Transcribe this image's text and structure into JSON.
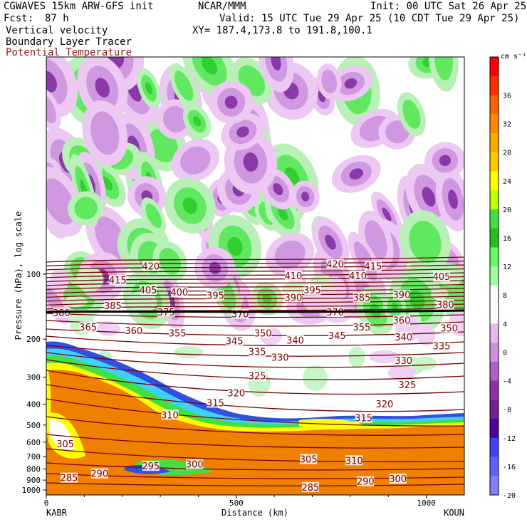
{
  "header": {
    "model": "CGWAVES 15km ARW-GFS init",
    "org": "NCAR/MMM",
    "init": "Init: 00 UTC Sat 26 Apr 25",
    "fcst_label": "Fcst:",
    "fcst_value": "87 h",
    "valid": "Valid: 15 UTC Tue 29 Apr 25 (10 CDT Tue 29 Apr 25)",
    "field1": "Vertical velocity",
    "field2": "Boundary Layer Tracer",
    "field3": "Potential Temperature",
    "xy": "XY= 187.4,173.8 to 191.8,100.1"
  },
  "colors": {
    "theta": "#7a0000",
    "tracer": "#f08000",
    "upward": "#20c020",
    "downward": "#a020a0"
  },
  "chart_data": {
    "type": "heatmap",
    "title": "Vertical velocity / Boundary Layer Tracer / Potential Temperature",
    "xlabel": "Distance (km)",
    "ylabel": "Pressure (hPa), log scale",
    "x_ticks": [
      0,
      500,
      1000
    ],
    "x_range": [
      0,
      1100
    ],
    "x_endpoints": {
      "left": "KABR",
      "right": "KOUN"
    },
    "y_scale": "log",
    "y_ticks": [
      100,
      200,
      300,
      400,
      500,
      600,
      700,
      800,
      900,
      1000
    ],
    "colorbar": {
      "units": "cm s⁻¹",
      "ticks": [
        36,
        32,
        28,
        24,
        20,
        16,
        12,
        8,
        4,
        0,
        -4,
        -8,
        -12,
        -16,
        -20
      ],
      "colors": [
        "#ff0000",
        "#ff3000",
        "#ff6000",
        "#ff8800",
        "#ffa800",
        "#ffc800",
        "#ffff00",
        "#c0ff00",
        "#40e040",
        "#20c020",
        "#60ff60",
        "#a0ffa0",
        "#ffffff",
        "#ffffff",
        "#e8b8f0",
        "#d090e0",
        "#b060c8",
        "#9030b0",
        "#702090",
        "#5000a0",
        "#4040ff",
        "#6060ff",
        "#8080ff"
      ]
    },
    "theta_labels": [
      {
        "v": "420",
        "x": 275,
        "p": 93
      },
      {
        "v": "420",
        "x": 760,
        "p": 91
      },
      {
        "v": "415",
        "x": 188,
        "p": 108
      },
      {
        "v": "415",
        "x": 860,
        "p": 93
      },
      {
        "v": "410",
        "x": 650,
        "p": 103
      },
      {
        "v": "410",
        "x": 820,
        "p": 103
      },
      {
        "v": "405",
        "x": 268,
        "p": 120
      },
      {
        "v": "405",
        "x": 1040,
        "p": 104
      },
      {
        "v": "400",
        "x": 350,
        "p": 123
      },
      {
        "v": "395",
        "x": 445,
        "p": 127
      },
      {
        "v": "395",
        "x": 700,
        "p": 120
      },
      {
        "v": "390",
        "x": 650,
        "p": 130
      },
      {
        "v": "390",
        "x": 935,
        "p": 126
      },
      {
        "v": "385",
        "x": 175,
        "p": 142
      },
      {
        "v": "385",
        "x": 830,
        "p": 130
      },
      {
        "v": "380",
        "x": 40,
        "p": 153
      },
      {
        "v": "380",
        "x": 1050,
        "p": 140
      },
      {
        "v": "375",
        "x": 315,
        "p": 152
      },
      {
        "v": "370",
        "x": 510,
        "p": 155
      },
      {
        "v": "370",
        "x": 760,
        "p": 152
      },
      {
        "v": "365",
        "x": 110,
        "p": 178
      },
      {
        "v": "360",
        "x": 230,
        "p": 185
      },
      {
        "v": "360",
        "x": 935,
        "p": 166
      },
      {
        "v": "355",
        "x": 345,
        "p": 190
      },
      {
        "v": "355",
        "x": 830,
        "p": 178
      },
      {
        "v": "350",
        "x": 570,
        "p": 190
      },
      {
        "v": "350",
        "x": 1060,
        "p": 180
      },
      {
        "v": "345",
        "x": 495,
        "p": 207
      },
      {
        "v": "345",
        "x": 765,
        "p": 195
      },
      {
        "v": "340",
        "x": 655,
        "p": 205
      },
      {
        "v": "340",
        "x": 940,
        "p": 198
      },
      {
        "v": "335",
        "x": 555,
        "p": 232
      },
      {
        "v": "335",
        "x": 1040,
        "p": 218
      },
      {
        "v": "330",
        "x": 615,
        "p": 246
      },
      {
        "v": "330",
        "x": 940,
        "p": 255
      },
      {
        "v": "325",
        "x": 555,
        "p": 300
      },
      {
        "v": "325",
        "x": 950,
        "p": 330
      },
      {
        "v": "320",
        "x": 500,
        "p": 360
      },
      {
        "v": "320",
        "x": 890,
        "p": 405
      },
      {
        "v": "315",
        "x": 445,
        "p": 400
      },
      {
        "v": "315",
        "x": 835,
        "p": 470
      },
      {
        "v": "310",
        "x": 325,
        "p": 455
      },
      {
        "v": "310",
        "x": 810,
        "p": 740
      },
      {
        "v": "305",
        "x": 50,
        "p": 620
      },
      {
        "v": "305",
        "x": 690,
        "p": 730
      },
      {
        "v": "300",
        "x": 390,
        "p": 770
      },
      {
        "v": "300",
        "x": 925,
        "p": 900
      },
      {
        "v": "295",
        "x": 275,
        "p": 785
      },
      {
        "v": "290",
        "x": 140,
        "p": 850
      },
      {
        "v": "290",
        "x": 840,
        "p": 925
      },
      {
        "v": "285",
        "x": 60,
        "p": 890
      },
      {
        "v": "285",
        "x": 695,
        "p": 985
      }
    ]
  }
}
